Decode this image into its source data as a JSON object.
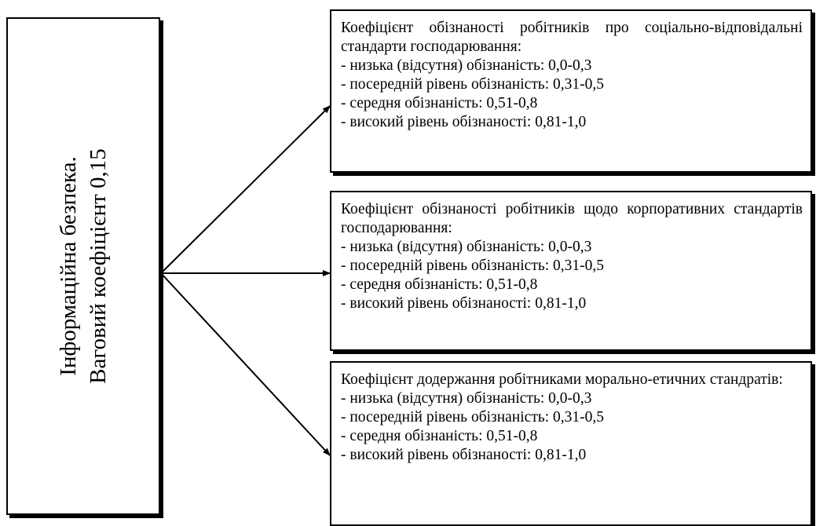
{
  "left": {
    "lines": [
      "Інформаційна безпека.",
      "Ваговий коефіцієнт 0,15"
    ]
  },
  "boxes": [
    {
      "title": "Коефіцієнт обізнаності робітників про соціально-відповідальні стандарти господарювання:",
      "items": [
        "- низька (відсутня) обізнаність: 0,0-0,3",
        "- посередній рівень обізнаність: 0,31-0,5",
        "- середня обізнаність: 0,51-0,8",
        "- високий рівень обізнаності: 0,81-1,0"
      ]
    },
    {
      "title": "Коефіцієнт обізнаності робітників щодо корпоративних стандартів господарювання:",
      "items": [
        "- низька (відсутня) обізнаність: 0,0-0,3",
        "- посередній рівень обізнаність: 0,31-0,5",
        "- середня обізнаність: 0,51-0,8",
        "- високий рівень обізнаності: 0,81-1,0"
      ]
    },
    {
      "title": "Коефіцієнт додержання робітниками морально-етичних стандратів:",
      "items": [
        "- низька (відсутня) обізнаність: 0,0-0,3",
        "- посередній рівень обізнаність: 0,31-0,5",
        "- середня обізнаність: 0,51-0,8",
        "- високий рівень обізнаності: 0,81-1,0"
      ]
    }
  ]
}
